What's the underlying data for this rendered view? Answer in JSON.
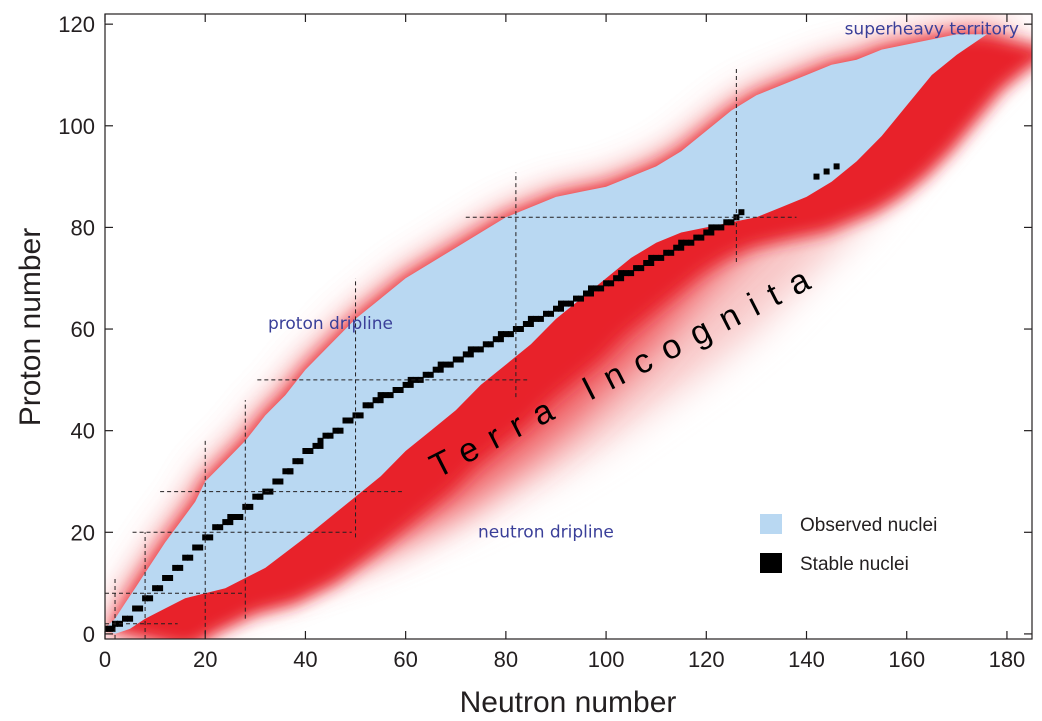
{
  "chart_data": {
    "type": "scatter",
    "title": "",
    "xlabel": "Neutron number",
    "ylabel": "Proton number",
    "xlim": [
      0,
      185
    ],
    "ylim": [
      -1,
      122
    ],
    "xticks": [
      0,
      20,
      40,
      60,
      80,
      100,
      120,
      140,
      160,
      180
    ],
    "yticks": [
      0,
      20,
      40,
      60,
      80,
      100,
      120
    ],
    "grid": false,
    "legend": {
      "placement": "bottom-right",
      "entries": [
        {
          "label": "Observed nuclei",
          "color": "#b9d8f2"
        },
        {
          "label": "Stable nuclei",
          "color": "#000000"
        }
      ]
    },
    "magic_numbers": [
      2,
      8,
      20,
      28,
      50,
      82,
      126
    ],
    "annotations": [
      {
        "id": "superheavy",
        "text": "superheavy territory",
        "x": 165,
        "y": 118
      },
      {
        "id": "proton-dripline",
        "text": "proton dripline",
        "x": 45,
        "y": 60
      },
      {
        "id": "neutron-dripline",
        "text": "neutron dripline",
        "x": 88,
        "y": 19
      },
      {
        "id": "terra-incognita",
        "text": "Terra Incognita",
        "x": 105,
        "y": 50
      }
    ],
    "series": [
      {
        "name": "Observed nuclei",
        "color": "#b9d8f2",
        "proton_dripline": [
          [
            0,
            1
          ],
          [
            2,
            3
          ],
          [
            4,
            6
          ],
          [
            6,
            9
          ],
          [
            8,
            12
          ],
          [
            10,
            15
          ],
          [
            12,
            18
          ],
          [
            15,
            22
          ],
          [
            18,
            26
          ],
          [
            20,
            30
          ],
          [
            24,
            34
          ],
          [
            28,
            38
          ],
          [
            32,
            43
          ],
          [
            36,
            47
          ],
          [
            40,
            52
          ],
          [
            45,
            57
          ],
          [
            50,
            62
          ],
          [
            55,
            66
          ],
          [
            60,
            70
          ],
          [
            65,
            73
          ],
          [
            70,
            76
          ],
          [
            75,
            79
          ],
          [
            80,
            82
          ],
          [
            85,
            84
          ],
          [
            90,
            86
          ],
          [
            95,
            87
          ],
          [
            100,
            88
          ],
          [
            105,
            90
          ],
          [
            110,
            92
          ],
          [
            115,
            95
          ],
          [
            120,
            99
          ],
          [
            125,
            103
          ],
          [
            130,
            106
          ],
          [
            135,
            108
          ],
          [
            140,
            110
          ],
          [
            145,
            112
          ],
          [
            150,
            113
          ],
          [
            155,
            115
          ],
          [
            160,
            116
          ],
          [
            165,
            117
          ],
          [
            170,
            118
          ],
          [
            176,
            118
          ]
        ],
        "neutron_dripline": [
          [
            2,
            0
          ],
          [
            5,
            1
          ],
          [
            8,
            3
          ],
          [
            12,
            5
          ],
          [
            16,
            7
          ],
          [
            20,
            8
          ],
          [
            24,
            9
          ],
          [
            28,
            11
          ],
          [
            32,
            13
          ],
          [
            36,
            16
          ],
          [
            40,
            19
          ],
          [
            45,
            23
          ],
          [
            50,
            27
          ],
          [
            55,
            31
          ],
          [
            60,
            36
          ],
          [
            65,
            40
          ],
          [
            70,
            44
          ],
          [
            75,
            49
          ],
          [
            80,
            53
          ],
          [
            85,
            57
          ],
          [
            90,
            62
          ],
          [
            95,
            66
          ],
          [
            100,
            70
          ],
          [
            105,
            74
          ],
          [
            110,
            77
          ],
          [
            115,
            79
          ],
          [
            120,
            80
          ],
          [
            125,
            81
          ],
          [
            130,
            82
          ],
          [
            135,
            84
          ],
          [
            140,
            86
          ],
          [
            145,
            89
          ],
          [
            150,
            93
          ],
          [
            155,
            98
          ],
          [
            160,
            104
          ],
          [
            165,
            110
          ],
          [
            170,
            114
          ],
          [
            176,
            118
          ]
        ]
      },
      {
        "name": "Stable nuclei",
        "color": "#000000",
        "valley": [
          [
            0,
            1
          ],
          [
            1,
            1
          ],
          [
            2,
            2
          ],
          [
            4,
            3
          ],
          [
            6,
            5
          ],
          [
            8,
            7
          ],
          [
            10,
            9
          ],
          [
            12,
            11
          ],
          [
            14,
            13
          ],
          [
            16,
            15
          ],
          [
            18,
            17
          ],
          [
            20,
            19
          ],
          [
            22,
            21
          ],
          [
            24,
            22
          ],
          [
            26,
            23
          ],
          [
            28,
            25
          ],
          [
            30,
            27
          ],
          [
            32,
            28
          ],
          [
            34,
            30
          ],
          [
            36,
            32
          ],
          [
            38,
            34
          ],
          [
            40,
            36
          ],
          [
            42,
            37
          ],
          [
            44,
            39
          ],
          [
            46,
            40
          ],
          [
            48,
            42
          ],
          [
            50,
            43
          ],
          [
            52,
            45
          ],
          [
            54,
            46
          ],
          [
            56,
            47
          ],
          [
            58,
            48
          ],
          [
            60,
            49
          ],
          [
            62,
            50
          ],
          [
            64,
            51
          ],
          [
            66,
            52
          ],
          [
            68,
            53
          ],
          [
            70,
            54
          ],
          [
            72,
            55
          ],
          [
            74,
            56
          ],
          [
            76,
            57
          ],
          [
            78,
            58
          ],
          [
            80,
            59
          ],
          [
            82,
            60
          ],
          [
            84,
            61
          ],
          [
            86,
            62
          ],
          [
            88,
            63
          ],
          [
            90,
            64
          ],
          [
            92,
            65
          ],
          [
            94,
            66
          ],
          [
            96,
            67
          ],
          [
            98,
            68
          ],
          [
            100,
            69
          ],
          [
            102,
            70
          ],
          [
            104,
            71
          ],
          [
            106,
            72
          ],
          [
            108,
            73
          ],
          [
            110,
            74
          ],
          [
            112,
            75
          ],
          [
            114,
            76
          ],
          [
            116,
            77
          ],
          [
            118,
            78
          ],
          [
            120,
            79
          ],
          [
            122,
            80
          ],
          [
            124,
            81
          ],
          [
            126,
            82
          ]
        ],
        "extra": [
          [
            142,
            90
          ],
          [
            144,
            91
          ],
          [
            146,
            92
          ]
        ]
      }
    ],
    "terra_incognita_region": {
      "color": "#e8202a",
      "outer_boundary": [
        [
          22,
          9
        ],
        [
          30,
          10
        ],
        [
          40,
          11
        ],
        [
          50,
          14
        ],
        [
          60,
          18
        ],
        [
          70,
          22
        ],
        [
          80,
          27
        ],
        [
          90,
          32
        ],
        [
          100,
          38
        ],
        [
          110,
          45
        ],
        [
          120,
          52
        ],
        [
          130,
          60
        ],
        [
          140,
          70
        ],
        [
          150,
          80
        ],
        [
          160,
          92
        ],
        [
          170,
          104
        ],
        [
          178,
          112
        ],
        [
          182,
          118
        ],
        [
          176,
          120
        ]
      ]
    }
  }
}
